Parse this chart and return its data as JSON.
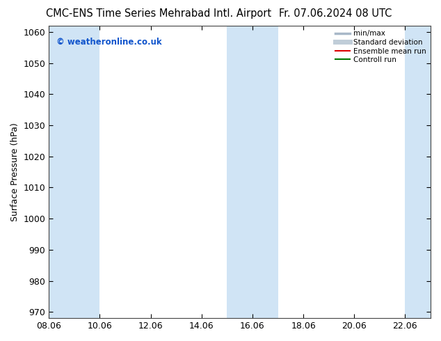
{
  "title_left": "CMC-ENS Time Series Mehrabad Intl. Airport",
  "title_right": "Fr. 07.06.2024 08 UTC",
  "ylabel": "Surface Pressure (hPa)",
  "ylim": [
    968,
    1062
  ],
  "yticks": [
    970,
    980,
    990,
    1000,
    1010,
    1020,
    1030,
    1040,
    1050,
    1060
  ],
  "xlim": [
    0,
    15
  ],
  "xtick_labels": [
    "08.06",
    "10.06",
    "12.06",
    "14.06",
    "16.06",
    "18.06",
    "20.06",
    "22.06"
  ],
  "xtick_positions": [
    0,
    2,
    4,
    6,
    8,
    10,
    12,
    14
  ],
  "shaded_bands": [
    {
      "start": 0,
      "end": 2,
      "color": "#d0e4f5"
    },
    {
      "start": 7,
      "end": 9,
      "color": "#d0e4f5"
    },
    {
      "start": 14,
      "end": 15,
      "color": "#d0e4f5"
    }
  ],
  "legend_entries": [
    {
      "label": "min/max",
      "color": "#a8b8c8",
      "lw": 2.5,
      "ls": "-"
    },
    {
      "label": "Standard deviation",
      "color": "#c0cdd8",
      "lw": 5,
      "ls": "-"
    },
    {
      "label": "Ensemble mean run",
      "color": "#dd0000",
      "lw": 1.5,
      "ls": "-"
    },
    {
      "label": "Controll run",
      "color": "#007700",
      "lw": 1.5,
      "ls": "-"
    }
  ],
  "watermark_text": "© weatheronline.co.uk",
  "watermark_color": "#1155cc",
  "bg_color": "#ffffff",
  "plot_bg_color": "#ffffff",
  "title_fontsize": 10.5,
  "tick_fontsize": 9,
  "ylabel_fontsize": 9
}
